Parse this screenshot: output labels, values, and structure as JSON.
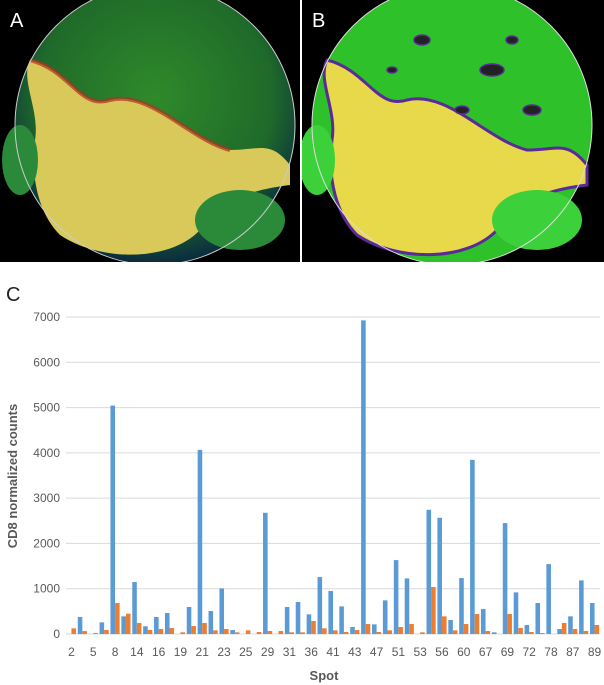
{
  "panels": {
    "a_label": "A",
    "b_label": "B",
    "c_label": "C"
  },
  "chart_data": {
    "type": "bar",
    "title": "",
    "xlabel": "Spot",
    "ylabel": "CD8 normalized counts",
    "ylim": [
      0,
      7000
    ],
    "yticks": [
      "0",
      "1000",
      "2000",
      "3000",
      "4000",
      "5000",
      "6000",
      "7000"
    ],
    "grid": true,
    "legend": "none",
    "categories": [
      "2",
      "",
      "5",
      "",
      "8",
      "",
      "14",
      "",
      "16",
      "",
      "19",
      "",
      "21",
      "",
      "23",
      "",
      "25",
      "",
      "29",
      "",
      "31",
      "",
      "36",
      "",
      "41",
      "",
      "43",
      "",
      "47",
      "",
      "51",
      "",
      "53",
      "",
      "56",
      "",
      "60",
      "",
      "67",
      "",
      "69",
      "",
      "72",
      "",
      "78",
      "",
      "87",
      "",
      "89"
    ],
    "series": [
      {
        "name": "series-1",
        "color": "#5b9bd5",
        "values": [
          0,
          375,
          0,
          257,
          5044,
          390,
          1147,
          170,
          375,
          463,
          0,
          596,
          4066,
          507,
          1007,
          88,
          0,
          0,
          2676,
          0,
          596,
          706,
          434,
          1257,
          949,
          610,
          154,
          6926,
          213,
          743,
          1632,
          1228,
          0,
          2743,
          2566,
          309,
          1235,
          3846,
          551,
          37,
          2449,
          919,
          199,
          684,
          1544,
          110,
          390,
          1184,
          684
        ]
      },
      {
        "name": "series-2",
        "color": "#ed7d31",
        "values": [
          125,
          65,
          20,
          90,
          684,
          449,
          243,
          90,
          110,
          132,
          37,
          176,
          243,
          81,
          110,
          37,
          81,
          44,
          66,
          66,
          37,
          37,
          287,
          125,
          81,
          44,
          88,
          220,
          44,
          81,
          154,
          220,
          37,
          1037,
          390,
          81,
          220,
          441,
          66,
          0,
          441,
          132,
          44,
          22,
          0,
          243,
          110,
          66,
          199
        ]
      }
    ]
  }
}
